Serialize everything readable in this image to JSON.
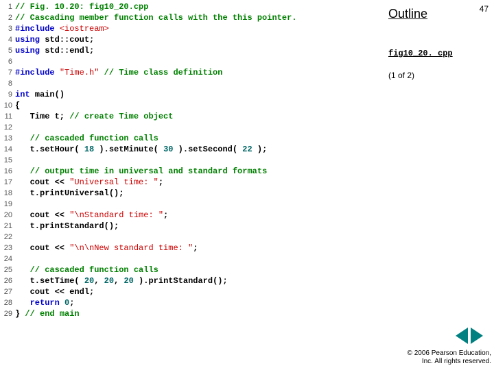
{
  "slide": {
    "page_number": "47",
    "outline_label": "Outline",
    "file_label": "fig10_20. cpp",
    "part_label": "(1 of 2)",
    "copyright_line1": "© 2006 Pearson Education,",
    "copyright_line2": "Inc.  All rights reserved.",
    "nav_color": "#008080"
  },
  "code": {
    "font_family": "Courier New",
    "font_size_pt": 9,
    "colors": {
      "comment": "#008000",
      "keyword": "#0000cc",
      "string": "#cc0000",
      "identifier": "#000000",
      "number": "#006666",
      "lineno": "#555555"
    },
    "lines": [
      {
        "n": "1",
        "tokens": [
          {
            "t": "// Fig. 10.20: fig10_20.cpp",
            "c": "c-green"
          }
        ]
      },
      {
        "n": "2",
        "tokens": [
          {
            "t": "// Cascading member function calls with the this pointer.",
            "c": "c-green"
          }
        ]
      },
      {
        "n": "3",
        "tokens": [
          {
            "t": "#include ",
            "c": "c-blue"
          },
          {
            "t": "<iostream>",
            "c": "c-red"
          }
        ]
      },
      {
        "n": "4",
        "tokens": [
          {
            "t": "using",
            "c": "c-blue"
          },
          {
            "t": " std::cout;",
            "c": "c-black"
          }
        ]
      },
      {
        "n": "5",
        "tokens": [
          {
            "t": "using",
            "c": "c-blue"
          },
          {
            "t": " std::endl;",
            "c": "c-black"
          }
        ]
      },
      {
        "n": "6",
        "tokens": []
      },
      {
        "n": "7",
        "tokens": [
          {
            "t": "#include ",
            "c": "c-blue"
          },
          {
            "t": "\"Time.h\"",
            "c": "c-red"
          },
          {
            "t": " // Time class definition",
            "c": "c-green"
          }
        ]
      },
      {
        "n": "8",
        "tokens": []
      },
      {
        "n": "9",
        "tokens": [
          {
            "t": "int",
            "c": "c-blue"
          },
          {
            "t": " main()",
            "c": "c-black"
          }
        ]
      },
      {
        "n": "10",
        "tokens": [
          {
            "t": "{",
            "c": "c-black"
          }
        ]
      },
      {
        "n": "11",
        "tokens": [
          {
            "t": "   Time t; ",
            "c": "c-black"
          },
          {
            "t": "// create Time object",
            "c": "c-green"
          }
        ]
      },
      {
        "n": "12",
        "tokens": []
      },
      {
        "n": "13",
        "tokens": [
          {
            "t": "   ",
            "c": "c-black"
          },
          {
            "t": "// cascaded function calls",
            "c": "c-green"
          }
        ]
      },
      {
        "n": "14",
        "tokens": [
          {
            "t": "   t.setHour( ",
            "c": "c-black"
          },
          {
            "t": "18",
            "c": "c-num"
          },
          {
            "t": " ).setMinute( ",
            "c": "c-black"
          },
          {
            "t": "30",
            "c": "c-num"
          },
          {
            "t": " ).setSecond( ",
            "c": "c-black"
          },
          {
            "t": "22",
            "c": "c-num"
          },
          {
            "t": " );",
            "c": "c-black"
          }
        ]
      },
      {
        "n": "15",
        "tokens": []
      },
      {
        "n": "16",
        "tokens": [
          {
            "t": "   ",
            "c": "c-black"
          },
          {
            "t": "// output time in universal and standard formats",
            "c": "c-green"
          }
        ]
      },
      {
        "n": "17",
        "tokens": [
          {
            "t": "   cout << ",
            "c": "c-black"
          },
          {
            "t": "\"Universal time: \"",
            "c": "c-red"
          },
          {
            "t": ";",
            "c": "c-black"
          }
        ]
      },
      {
        "n": "18",
        "tokens": [
          {
            "t": "   t.printUniversal();",
            "c": "c-black"
          }
        ]
      },
      {
        "n": "19",
        "tokens": []
      },
      {
        "n": "20",
        "tokens": [
          {
            "t": "   cout << ",
            "c": "c-black"
          },
          {
            "t": "\"\\nStandard time: \"",
            "c": "c-red"
          },
          {
            "t": ";",
            "c": "c-black"
          }
        ]
      },
      {
        "n": "21",
        "tokens": [
          {
            "t": "   t.printStandard();",
            "c": "c-black"
          }
        ]
      },
      {
        "n": "22",
        "tokens": []
      },
      {
        "n": "23",
        "tokens": [
          {
            "t": "   cout << ",
            "c": "c-black"
          },
          {
            "t": "\"\\n\\nNew standard time: \"",
            "c": "c-red"
          },
          {
            "t": ";",
            "c": "c-black"
          }
        ]
      },
      {
        "n": "24",
        "tokens": []
      },
      {
        "n": "25",
        "tokens": [
          {
            "t": "   ",
            "c": "c-black"
          },
          {
            "t": "// cascaded function calls",
            "c": "c-green"
          }
        ]
      },
      {
        "n": "26",
        "tokens": [
          {
            "t": "   t.setTime( ",
            "c": "c-black"
          },
          {
            "t": "20",
            "c": "c-num"
          },
          {
            "t": ", ",
            "c": "c-black"
          },
          {
            "t": "20",
            "c": "c-num"
          },
          {
            "t": ", ",
            "c": "c-black"
          },
          {
            "t": "20",
            "c": "c-num"
          },
          {
            "t": " ).printStandard();",
            "c": "c-black"
          }
        ]
      },
      {
        "n": "27",
        "tokens": [
          {
            "t": "   cout << endl;",
            "c": "c-black"
          }
        ]
      },
      {
        "n": "28",
        "tokens": [
          {
            "t": "   ",
            "c": "c-black"
          },
          {
            "t": "return",
            "c": "c-blue"
          },
          {
            "t": " ",
            "c": "c-black"
          },
          {
            "t": "0",
            "c": "c-num"
          },
          {
            "t": ";",
            "c": "c-black"
          }
        ]
      },
      {
        "n": "29",
        "tokens": [
          {
            "t": "} ",
            "c": "c-black"
          },
          {
            "t": "// end main",
            "c": "c-green"
          }
        ]
      }
    ]
  }
}
